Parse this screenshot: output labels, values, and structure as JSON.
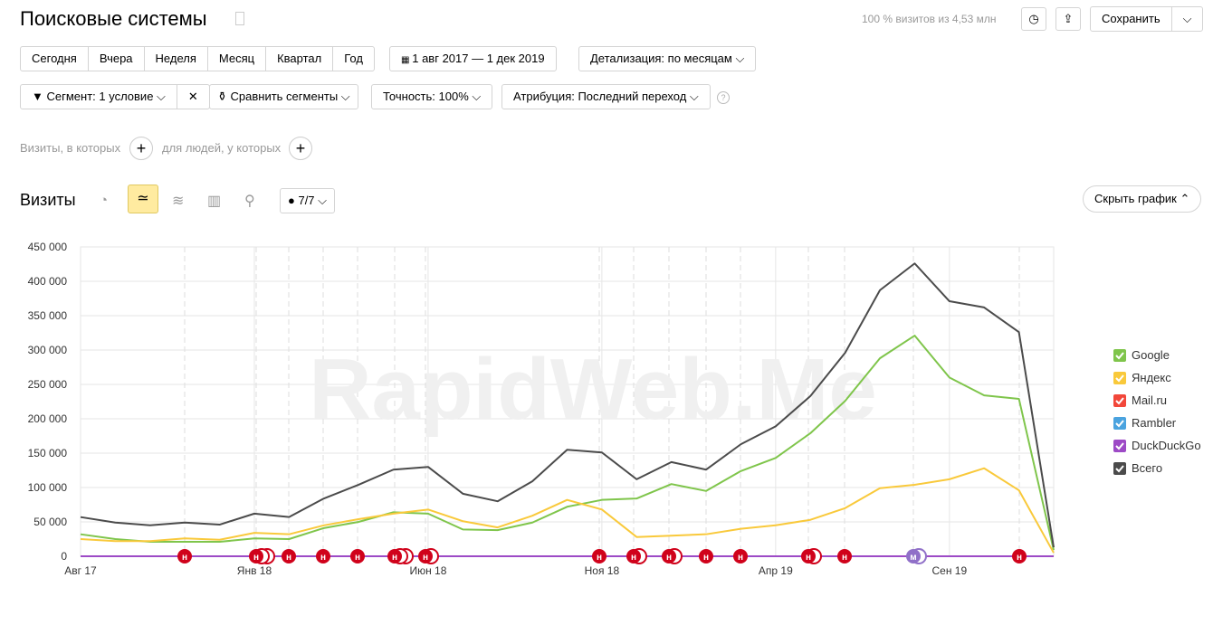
{
  "header": {
    "title": "Поисковые системы",
    "stats": "100 % визитов из 4,53 млн",
    "save": "Сохранить"
  },
  "period_buttons": [
    "Сегодня",
    "Вчера",
    "Неделя",
    "Месяц",
    "Квартал",
    "Год"
  ],
  "date_range": "1 авг 2017 — 1 дек 2019",
  "detail": "Детализация: по месяцам",
  "segment": "Сегмент: 1 условие",
  "compare": "Сравнить сегменты",
  "accuracy": "Точность: 100%",
  "attribution": "Атрибуция: Последний переход",
  "help": "?",
  "filter": {
    "visits_where": "Визиты, в которых",
    "people_where": "для людей, у которых"
  },
  "chart_panel": {
    "title": "Визиты",
    "notes": "7/7",
    "hide": "Скрыть график"
  },
  "watermark": "RapidWeb.Me",
  "chart_data": {
    "type": "line",
    "categories": [
      "Авг 17",
      null,
      null,
      null,
      null,
      "Янв 18",
      null,
      null,
      null,
      null,
      "Июн 18",
      null,
      null,
      null,
      null,
      "Ноя 18",
      null,
      null,
      null,
      null,
      "Апр 19",
      null,
      null,
      null,
      null,
      "Сен 19",
      null,
      null,
      null
    ],
    "series": [
      {
        "name": "Google",
        "color": "#7fc54b",
        "values": [
          32000,
          25000,
          21000,
          21000,
          21000,
          26000,
          25000,
          41000,
          50000,
          64000,
          62000,
          39000,
          38000,
          49000,
          72000,
          82000,
          84000,
          105000,
          95000,
          124000,
          143000,
          179000,
          226000,
          288000,
          321000,
          260000,
          234000,
          229000,
          9000
        ]
      },
      {
        "name": "Яндекс",
        "color": "#f9c93b",
        "values": [
          25000,
          22000,
          22000,
          26000,
          24000,
          34000,
          32000,
          45000,
          54000,
          62000,
          68000,
          51000,
          42000,
          59000,
          82000,
          68000,
          28000,
          30000,
          32000,
          40000,
          45000,
          53000,
          70000,
          99000,
          104000,
          112000,
          128000,
          96000,
          5000
        ]
      },
      {
        "name": "Mail.ru",
        "color": "#f2473a",
        "values": [
          0,
          0,
          0,
          0,
          0,
          0,
          0,
          0,
          0,
          0,
          0,
          0,
          0,
          0,
          0,
          0,
          0,
          0,
          0,
          0,
          0,
          0,
          0,
          0,
          0,
          0,
          0,
          0,
          0
        ]
      },
      {
        "name": "Rambler",
        "color": "#4aa3df",
        "values": [
          0,
          0,
          0,
          0,
          0,
          0,
          0,
          0,
          0,
          0,
          0,
          0,
          0,
          0,
          0,
          0,
          0,
          0,
          0,
          0,
          0,
          0,
          0,
          0,
          0,
          0,
          0,
          0,
          0
        ]
      },
      {
        "name": "DuckDuckGo",
        "color": "#9d4ac6",
        "values": [
          0,
          0,
          0,
          0,
          0,
          0,
          0,
          0,
          0,
          0,
          0,
          0,
          0,
          0,
          0,
          0,
          0,
          0,
          0,
          0,
          0,
          0,
          0,
          0,
          0,
          0,
          0,
          0,
          0
        ]
      },
      {
        "name": "Всего",
        "color": "#4b4b4b",
        "values": [
          57000,
          49000,
          45000,
          49000,
          46000,
          62000,
          57000,
          84000,
          104000,
          126000,
          130000,
          91000,
          80000,
          109000,
          155000,
          151000,
          112000,
          137000,
          126000,
          163000,
          189000,
          233000,
          296000,
          387000,
          426000,
          371000,
          362000,
          326000,
          13000
        ]
      }
    ],
    "ylim": [
      0,
      450000
    ],
    "yticks": [
      {
        "value": 0,
        "label": "0"
      },
      {
        "value": 50000,
        "label": "50 000"
      },
      {
        "value": 100000,
        "label": "100 000"
      },
      {
        "value": 150000,
        "label": "150 000"
      },
      {
        "value": 200000,
        "label": "200 000"
      },
      {
        "value": 250000,
        "label": "250 000"
      },
      {
        "value": 300000,
        "label": "300 000"
      },
      {
        "value": 350000,
        "label": "350 000"
      },
      {
        "value": 400000,
        "label": "400 000"
      },
      {
        "value": 450000,
        "label": "450 000"
      }
    ],
    "grid": true,
    "annotations": [
      "н",
      "н",
      "н",
      "н",
      "н",
      "н",
      "н",
      "н",
      "н",
      "н",
      "н",
      "н",
      "н",
      "н",
      "м",
      "н"
    ]
  }
}
